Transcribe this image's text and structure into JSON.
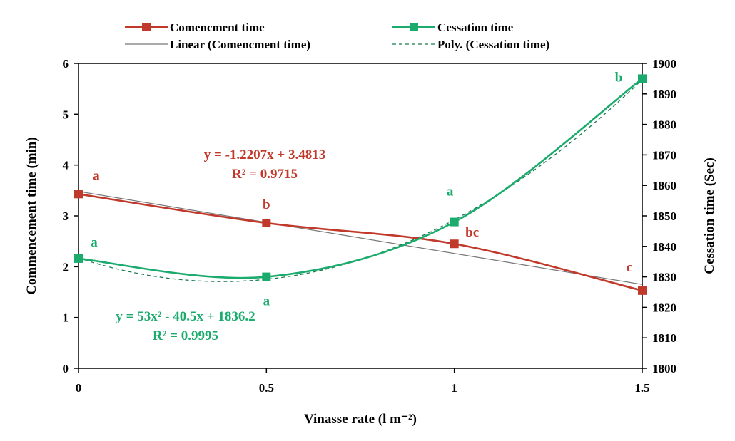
{
  "chart_data": {
    "type": "line",
    "x": [
      0,
      0.5,
      1,
      1.5
    ],
    "xticks": [
      "0",
      "0.5",
      "1",
      "1.5"
    ],
    "xlabel": "Vinasse rate (l m⁻²)",
    "ylabel_left": "Commencement time (min)",
    "ylabel_right": "Cessation time (Sec)",
    "ylim_left": [
      0,
      6
    ],
    "ylim_right": [
      1800,
      1900
    ],
    "yticks_left": [
      "0",
      "1",
      "2",
      "3",
      "4",
      "5",
      "6"
    ],
    "yticks_right": [
      "1800",
      "1810",
      "1820",
      "1830",
      "1840",
      "1850",
      "1860",
      "1870",
      "1880",
      "1890",
      "1900"
    ],
    "grid": false,
    "legend_position": "top",
    "series": [
      {
        "name": "Comencment time",
        "axis": "left",
        "color": "#c0392b",
        "marker": "square",
        "values": [
          3.43,
          2.86,
          2.45,
          1.53
        ],
        "letters": [
          "a",
          "b",
          "bc",
          "c"
        ]
      },
      {
        "name": "Cessation time",
        "axis": "right",
        "color": "#1aab6d",
        "marker": "square",
        "values": [
          1836,
          1830,
          1848,
          1895
        ],
        "letters": [
          "a",
          "a",
          "a",
          "b"
        ]
      }
    ],
    "trendlines": [
      {
        "name": "Linear (Comencment time)",
        "of": "Comencment time",
        "kind": "linear",
        "equation": "y = -1.2207x + 3.4813",
        "r2": "R² = 0.9715",
        "slope": -1.2207,
        "intercept": 3.4813
      },
      {
        "name": "Poly. (Cessation time)",
        "of": "Cessation time",
        "kind": "poly2",
        "equation": "y = 53x² - 40.5x + 1836.2",
        "r2": "R² = 0.9995",
        "a": 53,
        "b": -40.5,
        "c": 1836.2
      }
    ]
  }
}
